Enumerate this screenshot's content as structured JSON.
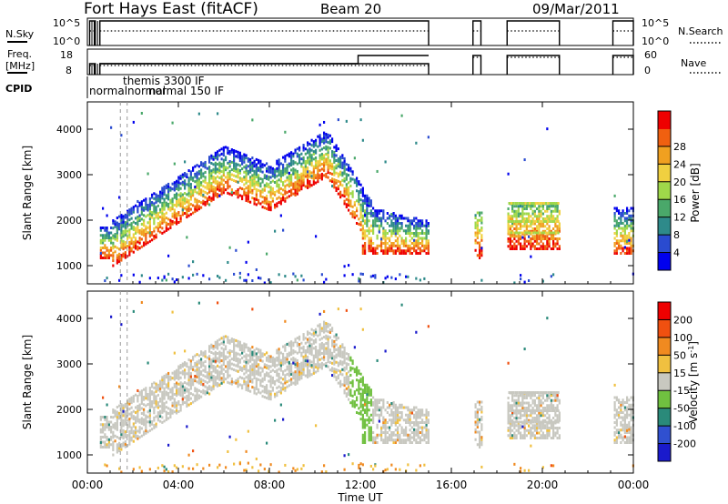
{
  "header": {
    "title": "Fort Hays East (fitACF)",
    "beam": "Beam 20",
    "date": "09/Mar/2011"
  },
  "top_panels": {
    "nsky": {
      "label": "N.Sky",
      "ticks": [
        "10^5",
        "10^0"
      ]
    },
    "nsearch": {
      "label": "N.Search",
      "ticks": [
        "10^5",
        "10^0"
      ]
    },
    "freq": {
      "label_line1": "Freq.",
      "label_line2": "[MHz]",
      "ticks": [
        "18",
        "8"
      ]
    },
    "nave": {
      "label": "Nave",
      "ticks": [
        "60",
        "0"
      ]
    },
    "cpid": {
      "label": "CPID",
      "entries": [
        "normal",
        "themis 3300 IF",
        "normal",
        "normal 150 IF"
      ]
    }
  },
  "chart_data": [
    {
      "type": "heatmap",
      "name": "power-panel",
      "ylabel": "Slant Range [km]",
      "yticks": [
        1000,
        2000,
        3000,
        4000
      ],
      "ylim": [
        600,
        4600
      ],
      "xticks": [
        "00:00",
        "04:00",
        "08:00",
        "12:00",
        "16:00",
        "20:00",
        "00:00"
      ],
      "colorbar": {
        "label": "Power [dB]",
        "ticks": [
          "4",
          "8",
          "12",
          "16",
          "20",
          "24",
          "28"
        ],
        "colors": [
          "#0000ee",
          "#2a4bd0",
          "#2e8a8a",
          "#4aa86a",
          "#9fd84a",
          "#f0d040",
          "#f0a020",
          "#f06010",
          "#ee0000"
        ]
      }
    },
    {
      "type": "heatmap",
      "name": "velocity-panel",
      "ylabel": "Slant Range [km]",
      "yticks": [
        1000,
        2000,
        3000,
        4000
      ],
      "ylim": [
        600,
        4600
      ],
      "xticks": [
        "00:00",
        "04:00",
        "08:00",
        "12:00",
        "16:00",
        "20:00",
        "00:00"
      ],
      "xlabel": "Time UT",
      "colorbar": {
        "label": "Velocity [m s",
        "label_sup": "-1",
        "label_end": "]",
        "ticks": [
          "200",
          "100",
          "50",
          "15",
          "-15",
          "-50",
          "-100",
          "-200"
        ],
        "colors": [
          "#1a1acc",
          "#3050d0",
          "#2a8a7a",
          "#70c040",
          "#c8c8c0",
          "#f0c040",
          "#f08a20",
          "#f05010",
          "#ee0000"
        ]
      }
    }
  ]
}
